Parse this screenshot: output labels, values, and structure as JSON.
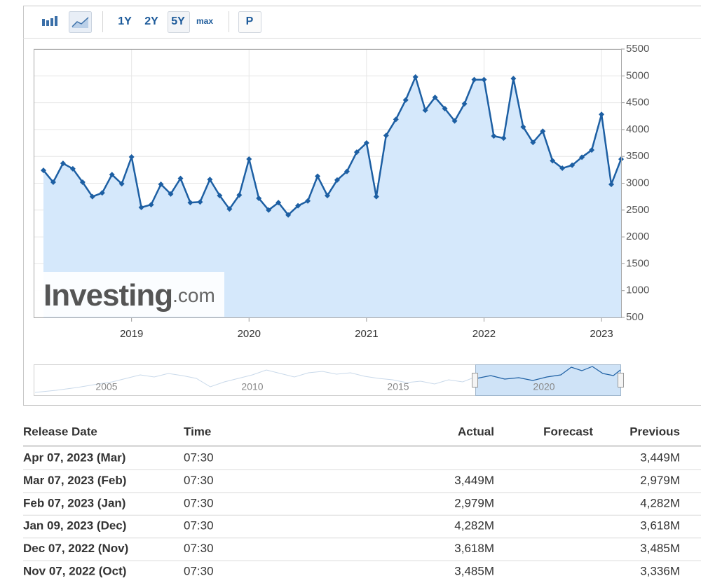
{
  "toolbar": {
    "ranges": [
      "1Y",
      "2Y",
      "5Y",
      "max"
    ],
    "mode": "P"
  },
  "chart_data": {
    "type": "line",
    "color": "#1d5fa3",
    "fill": "#d5e8fb",
    "grid": true,
    "x": [
      "2018-04",
      "2018-05",
      "2018-06",
      "2018-07",
      "2018-08",
      "2018-09",
      "2018-10",
      "2018-11",
      "2018-12",
      "2019-01",
      "2019-02",
      "2019-03",
      "2019-04",
      "2019-05",
      "2019-06",
      "2019-07",
      "2019-08",
      "2019-09",
      "2019-10",
      "2019-11",
      "2019-12",
      "2020-01",
      "2020-02",
      "2020-03",
      "2020-04",
      "2020-05",
      "2020-06",
      "2020-07",
      "2020-08",
      "2020-09",
      "2020-10",
      "2020-11",
      "2020-12",
      "2021-01",
      "2021-02",
      "2021-03",
      "2021-04",
      "2021-05",
      "2021-06",
      "2021-07",
      "2021-08",
      "2021-09",
      "2021-10",
      "2021-11",
      "2021-12",
      "2022-01",
      "2022-02",
      "2022-03",
      "2022-04",
      "2022-05",
      "2022-06",
      "2022-07",
      "2022-08",
      "2022-09",
      "2022-10",
      "2022-11",
      "2022-12",
      "2023-01",
      "2023-02",
      "2023-03"
    ],
    "values": [
      3240,
      3020,
      3370,
      3270,
      3020,
      2750,
      2820,
      3160,
      2990,
      3490,
      2550,
      2600,
      2980,
      2800,
      3090,
      2640,
      2650,
      3070,
      2770,
      2520,
      2780,
      3450,
      2720,
      2500,
      2640,
      2410,
      2580,
      2670,
      3130,
      2770,
      3060,
      3220,
      3580,
      3750,
      2750,
      3890,
      4190,
      4550,
      4980,
      4360,
      4600,
      4390,
      4160,
      4480,
      4930,
      4930,
      3880,
      3840,
      4950,
      4050,
      3760,
      3970,
      3420,
      3280,
      3336,
      3485,
      3618,
      4282,
      2979,
      3449
    ],
    "xlim": [
      "2018-03",
      "2023-03"
    ],
    "xticks": [
      {
        "value": "2019-01",
        "label": "2019"
      },
      {
        "value": "2020-01",
        "label": "2020"
      },
      {
        "value": "2021-01",
        "label": "2021"
      },
      {
        "value": "2022-01",
        "label": "2022"
      },
      {
        "value": "2023-01",
        "label": "2023"
      }
    ],
    "ylim": [
      500,
      5500
    ],
    "yticks": [
      500,
      1000,
      1500,
      2000,
      2500,
      3000,
      3500,
      4000,
      4500,
      5000,
      5500
    ],
    "watermark": {
      "brand": "Investing",
      "suffix": ".com"
    },
    "navigator_labels": [
      "2005",
      "2010",
      "2015",
      "2020"
    ]
  },
  "table": {
    "headers": {
      "date": "Release Date",
      "time": "Time",
      "actual": "Actual",
      "forecast": "Forecast",
      "previous": "Previous"
    },
    "rows": [
      {
        "date": "Apr 07, 2023 (Mar)",
        "time": "07:30",
        "previous": "3,449M"
      },
      {
        "date": "Mar 07, 2023 (Feb)",
        "time": "07:30",
        "actual": "3,449M",
        "previous": "2,979M"
      },
      {
        "date": "Feb 07, 2023 (Jan)",
        "time": "07:30",
        "actual": "2,979M",
        "previous": "4,282M"
      },
      {
        "date": "Jan 09, 2023 (Dec)",
        "time": "07:30",
        "actual": "4,282M",
        "previous": "3,618M"
      },
      {
        "date": "Dec 07, 2022 (Nov)",
        "time": "07:30",
        "actual": "3,618M",
        "previous": "3,485M"
      },
      {
        "date": "Nov 07, 2022 (Oct)",
        "time": "07:30",
        "actual": "3,485M",
        "previous": "3,336M"
      }
    ]
  }
}
